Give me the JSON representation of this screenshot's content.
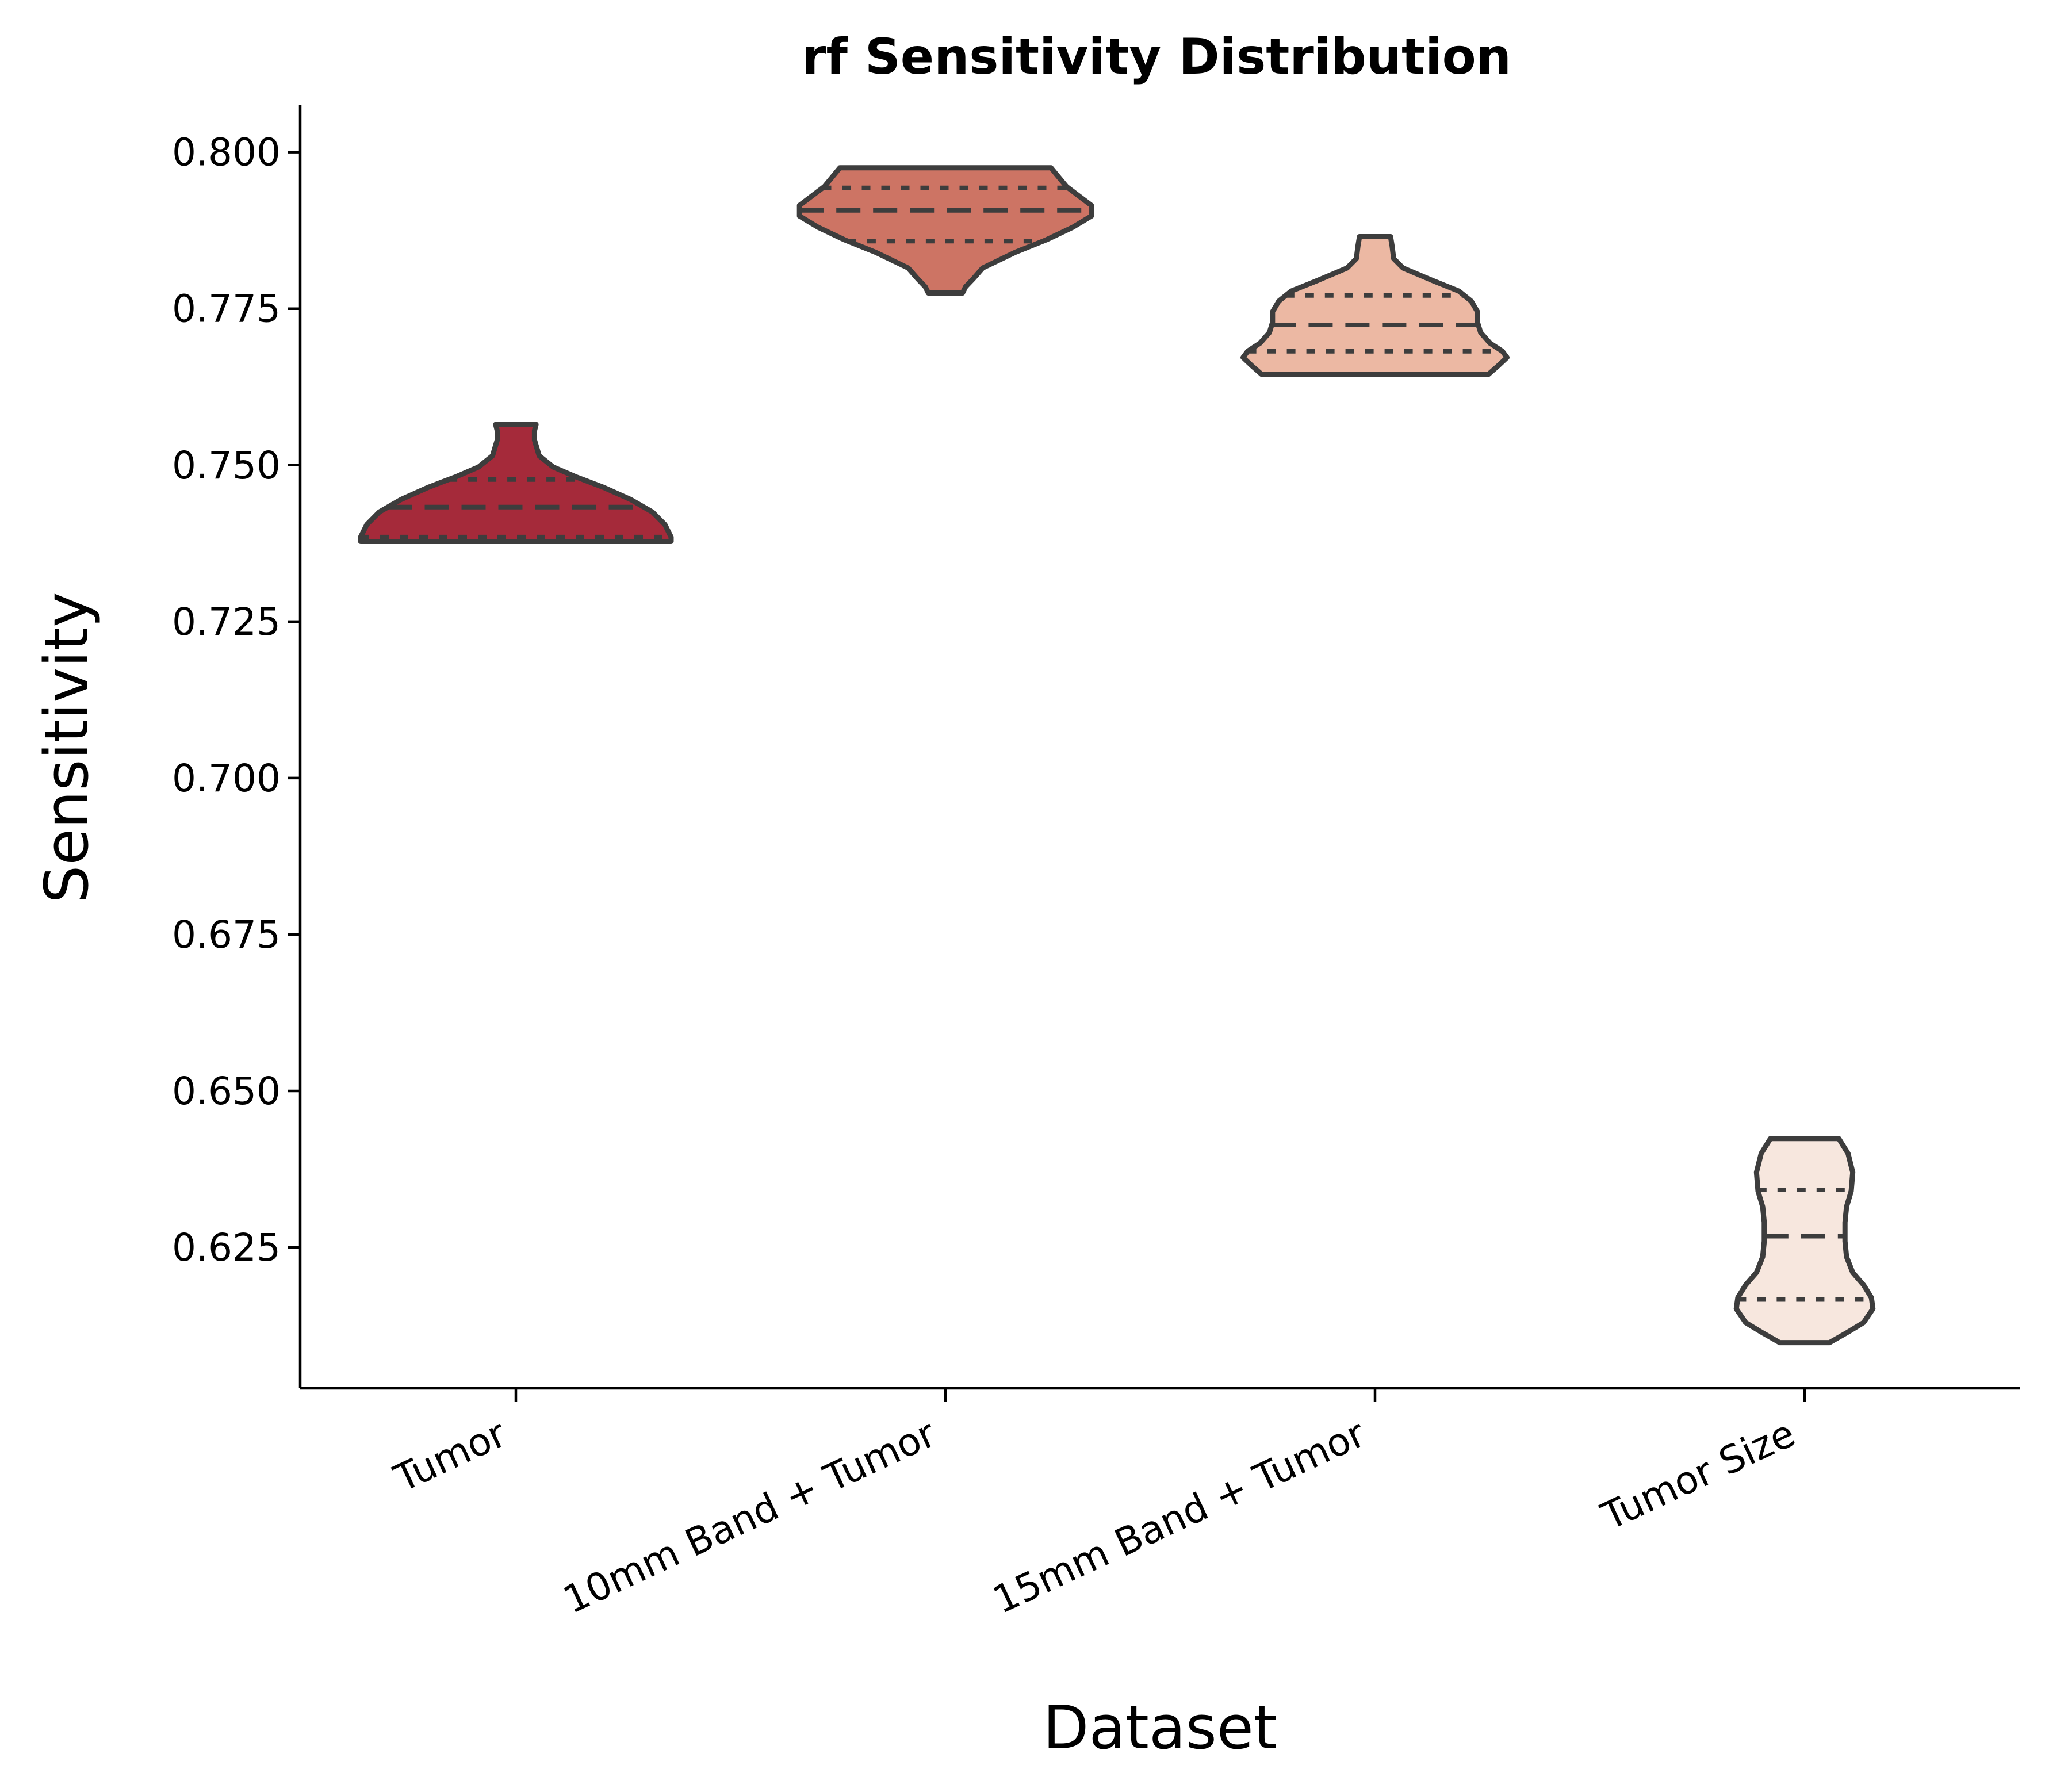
{
  "chart_data": {
    "type": "violin",
    "title": "rf Sensitivity Distribution",
    "xlabel": "Dataset",
    "ylabel": "Sensitivity",
    "ylim": [
      0.6025,
      0.8075
    ],
    "yticks": [
      0.625,
      0.65,
      0.675,
      0.7,
      0.725,
      0.75,
      0.775,
      0.8
    ],
    "ytick_labels": [
      "0.625",
      "0.650",
      "0.675",
      "0.700",
      "0.725",
      "0.750",
      "0.775",
      "0.800"
    ],
    "grid": false,
    "inner": "quartile",
    "categories": [
      "Tumor",
      "10mm Band + Tumor",
      "15mm Band + Tumor",
      "Tumor Size"
    ],
    "violins": [
      {
        "category": "Tumor",
        "color": "#a52a3a",
        "min": 0.7378,
        "max": 0.7565,
        "q1": 0.7385,
        "median": 0.7433,
        "q3": 0.7477,
        "density": [
          [
            0.7378,
            1.0
          ],
          [
            0.7385,
            1.0
          ],
          [
            0.739,
            0.99
          ],
          [
            0.7405,
            0.96
          ],
          [
            0.7425,
            0.88
          ],
          [
            0.7445,
            0.74
          ],
          [
            0.7465,
            0.56
          ],
          [
            0.7482,
            0.38
          ],
          [
            0.7497,
            0.24
          ],
          [
            0.7515,
            0.15
          ],
          [
            0.754,
            0.12
          ],
          [
            0.7555,
            0.12
          ],
          [
            0.7565,
            0.13
          ]
        ]
      },
      {
        "category": "10mm Band + Tumor",
        "color": "#cd7464",
        "min": 0.7775,
        "max": 0.7975,
        "q1": 0.7858,
        "median": 0.7907,
        "q3": 0.7943,
        "density": [
          [
            0.7775,
            0.11
          ],
          [
            0.7785,
            0.13
          ],
          [
            0.7798,
            0.18
          ],
          [
            0.7815,
            0.24
          ],
          [
            0.784,
            0.45
          ],
          [
            0.786,
            0.65
          ],
          [
            0.788,
            0.82
          ],
          [
            0.7898,
            0.94
          ],
          [
            0.7915,
            0.94
          ],
          [
            0.793,
            0.86
          ],
          [
            0.7945,
            0.78
          ],
          [
            0.796,
            0.73
          ],
          [
            0.7975,
            0.68
          ]
        ]
      },
      {
        "category": "15mm Band + Tumor",
        "color": "#ecb8a3",
        "min": 0.7645,
        "max": 0.7865,
        "q1": 0.7682,
        "median": 0.7724,
        "q3": 0.7771,
        "density": [
          [
            0.7645,
            0.73
          ],
          [
            0.7658,
            0.79
          ],
          [
            0.7672,
            0.85
          ],
          [
            0.7682,
            0.82
          ],
          [
            0.7695,
            0.74
          ],
          [
            0.7712,
            0.68
          ],
          [
            0.7728,
            0.66
          ],
          [
            0.7745,
            0.66
          ],
          [
            0.7762,
            0.62
          ],
          [
            0.7778,
            0.54
          ],
          [
            0.7795,
            0.37
          ],
          [
            0.7815,
            0.18
          ],
          [
            0.783,
            0.12
          ],
          [
            0.785,
            0.11
          ],
          [
            0.7865,
            0.1
          ]
        ]
      },
      {
        "category": "Tumor Size",
        "color": "#f7e7de",
        "min": 0.6098,
        "max": 0.6424,
        "q1": 0.6167,
        "median": 0.6268,
        "q3": 0.6342,
        "density": [
          [
            0.6098,
            0.16
          ],
          [
            0.6115,
            0.28
          ],
          [
            0.613,
            0.38
          ],
          [
            0.6152,
            0.44
          ],
          [
            0.617,
            0.43
          ],
          [
            0.619,
            0.38
          ],
          [
            0.621,
            0.31
          ],
          [
            0.6235,
            0.27
          ],
          [
            0.626,
            0.26
          ],
          [
            0.629,
            0.26
          ],
          [
            0.6315,
            0.27
          ],
          [
            0.634,
            0.3
          ],
          [
            0.637,
            0.31
          ],
          [
            0.64,
            0.28
          ],
          [
            0.6424,
            0.22
          ]
        ]
      }
    ]
  }
}
